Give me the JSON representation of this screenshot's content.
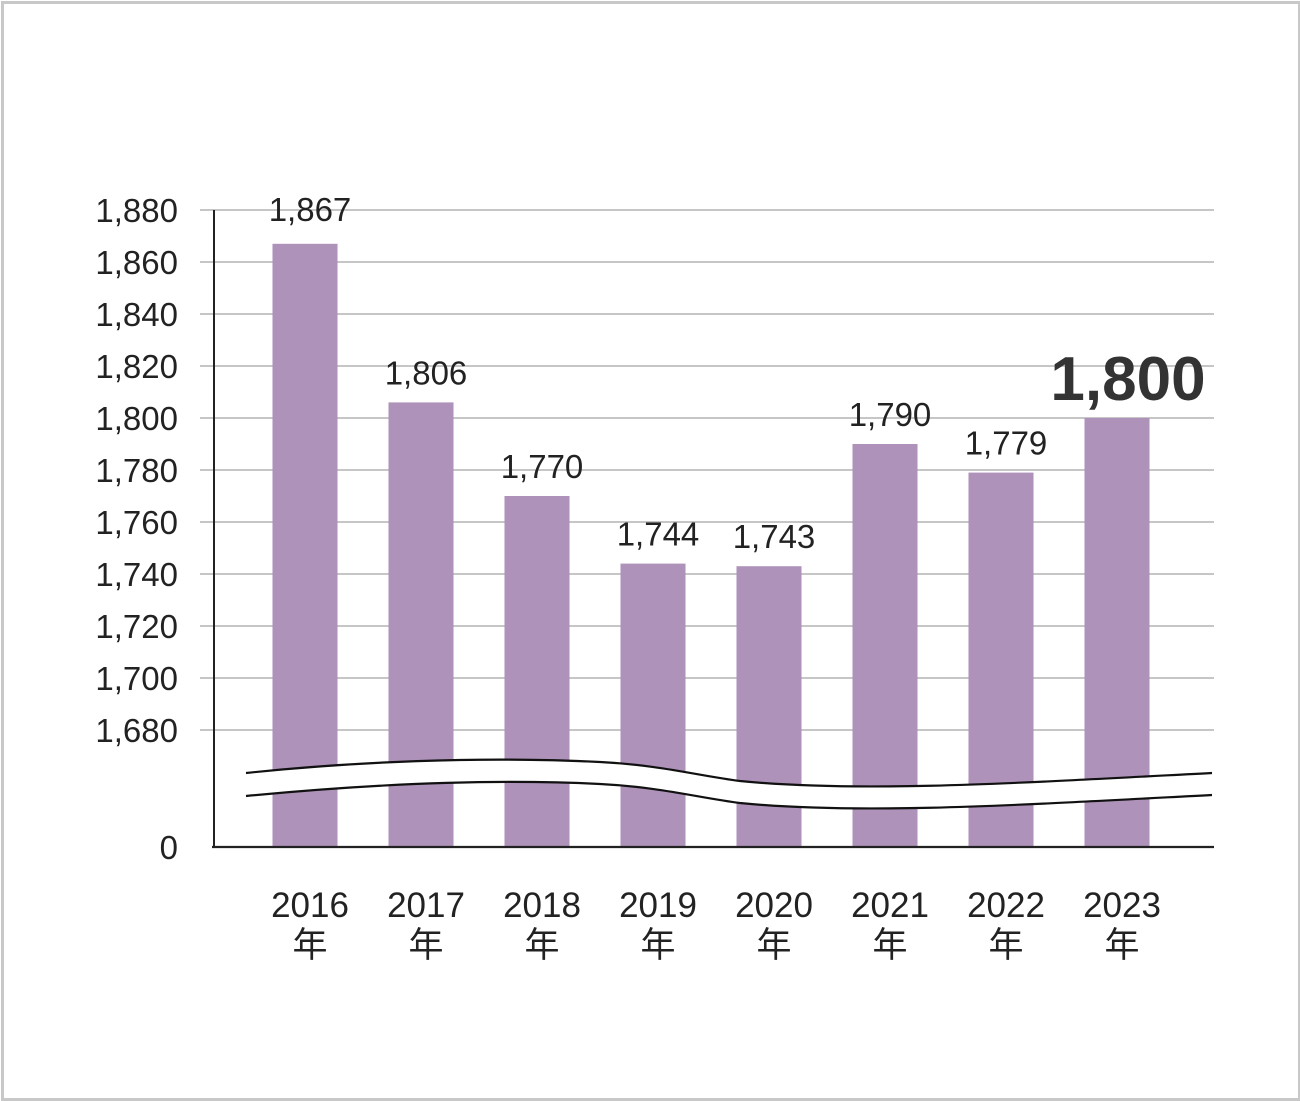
{
  "chart_data": {
    "type": "bar",
    "categories": [
      "2016\n年",
      "2017\n年",
      "2018\n年",
      "2019\n年",
      "2020\n年",
      "2021\n年",
      "2022\n年",
      "2023\n年"
    ],
    "values": [
      1867,
      1806,
      1770,
      1744,
      1743,
      1790,
      1779,
      1800
    ],
    "value_labels": [
      "1,867",
      "1,806",
      "1,770",
      "1,744",
      "1,743",
      "1,790",
      "1,779",
      "1,800"
    ],
    "highlight_index": 7,
    "title": "",
    "xlabel": "",
    "ylabel": "",
    "ylim": [
      1680,
      1880
    ],
    "yticks": [
      "1,880",
      "1,860",
      "1,840",
      "1,820",
      "1,800",
      "1,780",
      "1,760",
      "1,740",
      "1,720",
      "1,700",
      "1,680"
    ],
    "y_zero_label": "0",
    "axis_break": true,
    "grid": true,
    "legend": "none",
    "colors": {
      "bar": "#ae92b9",
      "grid": "#b4b4b4",
      "axis": "#222222"
    }
  }
}
